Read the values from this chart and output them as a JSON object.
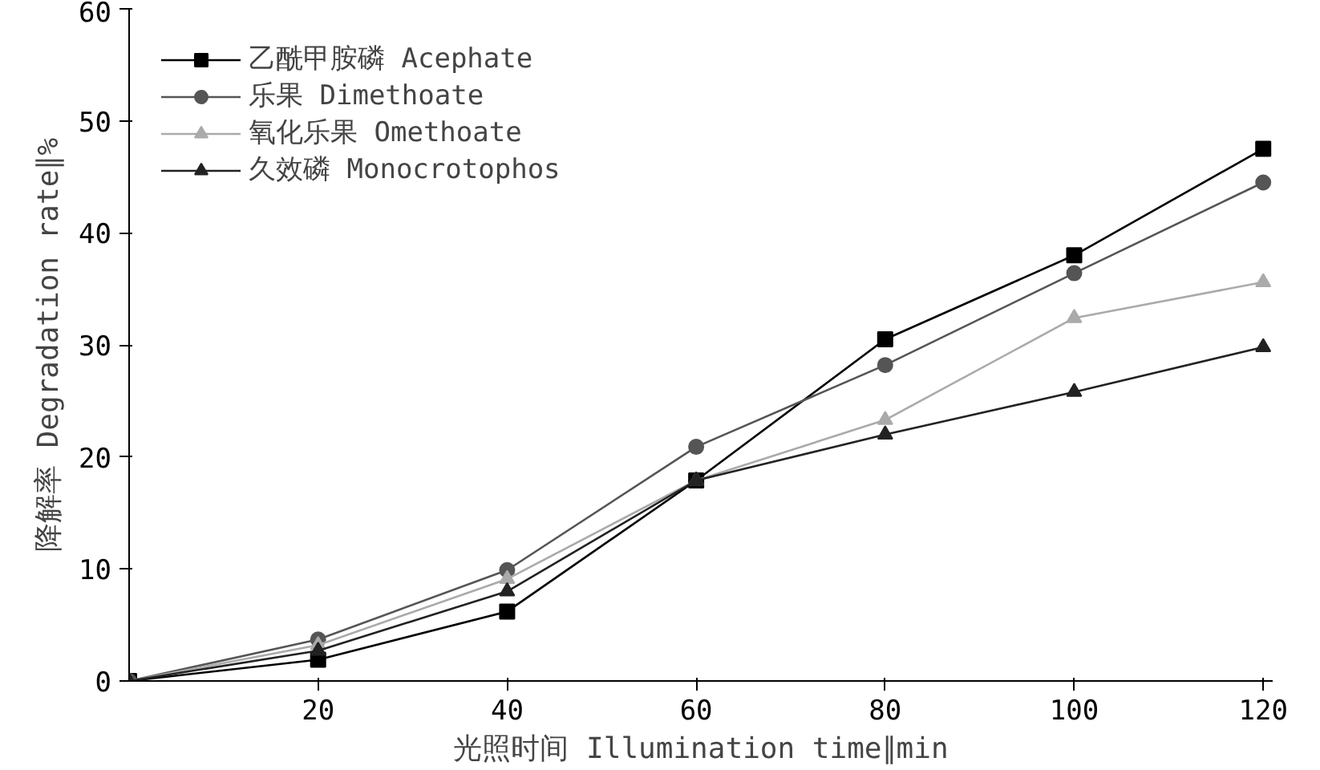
{
  "chart_data": {
    "type": "line",
    "xlabel": "光照时间 Illumination time∥min",
    "ylabel": "降解率 Degradation rate∥%",
    "x": [
      0,
      20,
      40,
      60,
      80,
      100,
      120
    ],
    "xlim": [
      0,
      121
    ],
    "xticks": [
      20,
      40,
      60,
      80,
      100,
      120
    ],
    "ylim": [
      0,
      60
    ],
    "yticks": [
      0,
      10,
      20,
      30,
      40,
      50,
      60
    ],
    "grid": false,
    "legend": "top left",
    "line_style": "solid",
    "series": [
      {
        "name": "乙酰甲胺磷 Acephate",
        "color": "#000000",
        "marker": "square",
        "values": [
          0,
          1.9,
          6.2,
          17.9,
          30.5,
          38,
          47.5
        ]
      },
      {
        "name": "乐果 Dimethoate",
        "color": "#555555",
        "marker": "circle",
        "values": [
          0,
          3.7,
          9.9,
          20.9,
          28.2,
          36.4,
          44.5
        ]
      },
      {
        "name": "氧化乐果 Omethoate",
        "color": "#aaaaaa",
        "marker": "triangle",
        "values": [
          0,
          3.2,
          9.1,
          17.9,
          23.3,
          32.4,
          35.6
        ]
      },
      {
        "name": "久效磷 Monocrotophos",
        "color": "#222222",
        "marker": "triangle",
        "values": [
          0,
          2.7,
          8,
          17.9,
          22,
          25.8,
          29.8
        ]
      }
    ]
  }
}
